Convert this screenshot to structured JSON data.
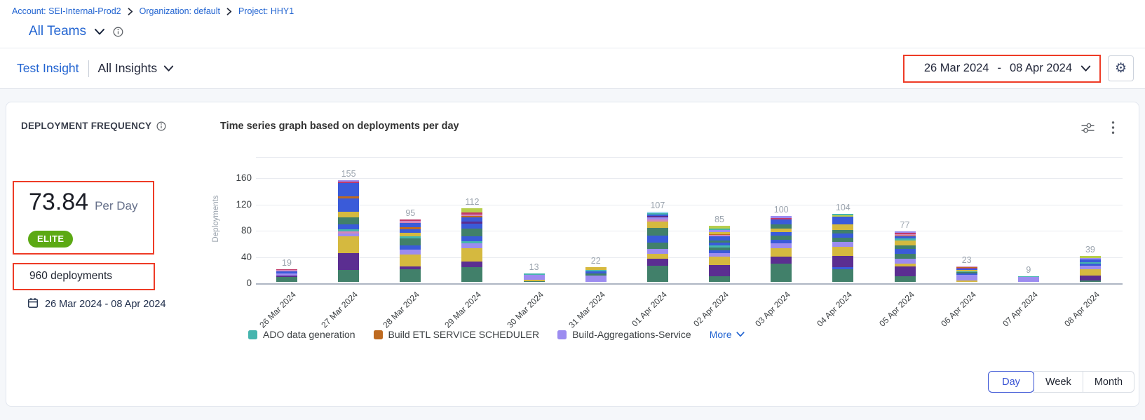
{
  "annotation_color": "#ee3b26",
  "breadcrumb": {
    "items": [
      {
        "label": "Account: SEI-Internal-Prod2"
      },
      {
        "label": "Organization: default"
      },
      {
        "label": "Project: HHY1"
      }
    ]
  },
  "team_selector": {
    "label": "All Teams"
  },
  "insight_bar": {
    "insight_name": "Test Insight",
    "scope_label": "All Insights",
    "date_from": "26 Mar 2024",
    "date_separator": "-",
    "date_to": "08 Apr 2024"
  },
  "widget": {
    "title": "DEPLOYMENT FREQUENCY",
    "metric_value": "73.84",
    "metric_unit": "Per Day",
    "badge": "ELITE",
    "badge_color": "#5ca914",
    "total_label": "960 deployments",
    "date_range": "26 Mar 2024 - 08 Apr 2024",
    "chart_title": "Time series graph based on deployments per day"
  },
  "legend": {
    "items": [
      {
        "label": "ADO data generation",
        "color": "#46b5ae"
      },
      {
        "label": "Build ETL SERVICE SCHEDULER",
        "color": "#be6a20"
      },
      {
        "label": "Build-Aggregations-Service",
        "color": "#9c8cf0"
      }
    ],
    "more_label": "More"
  },
  "granularity": {
    "options": [
      "Day",
      "Week",
      "Month"
    ],
    "selected": "Day"
  },
  "chart_data": {
    "type": "bar",
    "stacked": true,
    "title": "Time series graph based on deployments per day",
    "xlabel": "",
    "ylabel": "Deployments",
    "yticks": [
      0,
      40,
      80,
      120,
      160
    ],
    "ylim": [
      0,
      180
    ],
    "grid": true,
    "legend_position": "bottom",
    "categories": [
      "26 Mar 2024",
      "27 Mar 2024",
      "28 Mar 2024",
      "29 Mar 2024",
      "30 Mar 2024",
      "31 Mar 2024",
      "01 Apr 2024",
      "02 Apr 2024",
      "03 Apr 2024",
      "04 Apr 2024",
      "05 Apr 2024",
      "06 Apr 2024",
      "07 Apr 2024",
      "08 Apr 2024"
    ],
    "totals": [
      19,
      155,
      95,
      112,
      13,
      22,
      107,
      85,
      100,
      104,
      77,
      23,
      9,
      39
    ],
    "palette": {
      "green": "#41806a",
      "darkPurple": "#5b2e91",
      "yellow": "#d5b93f",
      "periwinkle": "#9c8cf0",
      "blue": "#3a5bd9",
      "teal": "#46b5ae",
      "orange": "#be6a20",
      "crimson": "#c13a6b",
      "pink": "#d287bc",
      "lightGreen": "#b7ce4c",
      "lightBlue": "#9fd8ef"
    },
    "stacks": [
      [
        [
          "green",
          8
        ],
        [
          "darkPurple",
          2
        ],
        [
          "periwinkle",
          3
        ],
        [
          "blue",
          3
        ],
        [
          "pink",
          2
        ],
        [
          "crimson",
          1
        ]
      ],
      [
        [
          "green",
          18
        ],
        [
          "darkPurple",
          26
        ],
        [
          "yellow",
          25
        ],
        [
          "periwinkle",
          5
        ],
        [
          "pink",
          3
        ],
        [
          "teal",
          3
        ],
        [
          "blue",
          8
        ],
        [
          "green",
          10
        ],
        [
          "yellow",
          9
        ],
        [
          "blue",
          20
        ],
        [
          "orange",
          3
        ],
        [
          "blue",
          20
        ],
        [
          "crimson",
          3
        ],
        [
          "periwinkle",
          2
        ]
      ],
      [
        [
          "green",
          19
        ],
        [
          "darkPurple",
          5
        ],
        [
          "yellow",
          18
        ],
        [
          "periwinkle",
          7
        ],
        [
          "blue",
          7
        ],
        [
          "green",
          10
        ],
        [
          "teal",
          3
        ],
        [
          "yellow",
          6
        ],
        [
          "blue",
          5
        ],
        [
          "orange",
          3
        ],
        [
          "blue",
          7
        ],
        [
          "pink",
          3
        ],
        [
          "crimson",
          2
        ]
      ],
      [
        [
          "green",
          22
        ],
        [
          "darkPurple",
          9
        ],
        [
          "yellow",
          20
        ],
        [
          "periwinkle",
          8
        ],
        [
          "teal",
          3
        ],
        [
          "blue",
          7
        ],
        [
          "green",
          12
        ],
        [
          "blue",
          8
        ],
        [
          "darkPurple",
          3
        ],
        [
          "blue",
          6
        ],
        [
          "orange",
          2
        ],
        [
          "pink",
          3
        ],
        [
          "crimson",
          3
        ],
        [
          "lightGreen",
          6
        ]
      ],
      [
        [
          "green",
          1
        ],
        [
          "yellow",
          2
        ],
        [
          "periwinkle",
          8
        ],
        [
          "teal",
          2
        ]
      ],
      [
        [
          "periwinkle",
          10
        ],
        [
          "green",
          3
        ],
        [
          "blue",
          3
        ],
        [
          "teal",
          2
        ],
        [
          "yellow",
          4
        ]
      ],
      [
        [
          "green",
          25
        ],
        [
          "darkPurple",
          10
        ],
        [
          "yellow",
          8
        ],
        [
          "periwinkle",
          7
        ],
        [
          "green",
          10
        ],
        [
          "blue",
          10
        ],
        [
          "green",
          12
        ],
        [
          "yellow",
          10
        ],
        [
          "pink",
          3
        ],
        [
          "periwinkle",
          3
        ],
        [
          "darkPurple",
          2
        ],
        [
          "blue",
          3
        ],
        [
          "teal",
          2
        ],
        [
          "lightBlue",
          2
        ]
      ],
      [
        [
          "green",
          9
        ],
        [
          "darkPurple",
          17
        ],
        [
          "yellow",
          12
        ],
        [
          "periwinkle",
          6
        ],
        [
          "blue",
          4
        ],
        [
          "green",
          4
        ],
        [
          "teal",
          3
        ],
        [
          "blue",
          5
        ],
        [
          "green",
          3
        ],
        [
          "blue",
          6
        ],
        [
          "pink",
          2
        ],
        [
          "orange",
          2
        ],
        [
          "yellow",
          3
        ],
        [
          "periwinkle",
          3
        ],
        [
          "teal",
          2
        ],
        [
          "lightGreen",
          4
        ]
      ],
      [
        [
          "green",
          28
        ],
        [
          "darkPurple",
          10
        ],
        [
          "yellow",
          13
        ],
        [
          "periwinkle",
          8
        ],
        [
          "blue",
          5
        ],
        [
          "green",
          6
        ],
        [
          "blue",
          6
        ],
        [
          "yellow",
          5
        ],
        [
          "green",
          6
        ],
        [
          "blue",
          8
        ],
        [
          "crimson",
          2
        ],
        [
          "periwinkle",
          3
        ]
      ],
      [
        [
          "green",
          19
        ],
        [
          "blue",
          3
        ],
        [
          "darkPurple",
          17
        ],
        [
          "yellow",
          14
        ],
        [
          "periwinkle",
          8
        ],
        [
          "green",
          6
        ],
        [
          "blue",
          7
        ],
        [
          "green",
          5
        ],
        [
          "yellow",
          8
        ],
        [
          "blue",
          12
        ],
        [
          "lightGreen",
          2
        ],
        [
          "teal",
          3
        ]
      ],
      [
        [
          "green",
          9
        ],
        [
          "darkPurple",
          15
        ],
        [
          "yellow",
          4
        ],
        [
          "periwinkle",
          7
        ],
        [
          "green",
          8
        ],
        [
          "blue",
          7
        ],
        [
          "green",
          6
        ],
        [
          "yellow",
          7
        ],
        [
          "teal",
          3
        ],
        [
          "blue",
          3
        ],
        [
          "orange",
          2
        ],
        [
          "pink",
          2
        ],
        [
          "crimson",
          2
        ],
        [
          "periwinkle",
          2
        ]
      ],
      [
        [
          "yellow",
          2
        ],
        [
          "periwinkle",
          9
        ],
        [
          "blue",
          2
        ],
        [
          "green",
          2
        ],
        [
          "teal",
          1
        ],
        [
          "yellow",
          2
        ],
        [
          "blue",
          2
        ],
        [
          "crimson",
          1
        ],
        [
          "orange",
          1
        ],
        [
          "pink",
          1
        ]
      ],
      [
        [
          "periwinkle",
          8
        ],
        [
          "teal",
          1
        ]
      ],
      [
        [
          "green",
          2
        ],
        [
          "darkPurple",
          8
        ],
        [
          "yellow",
          9
        ],
        [
          "periwinkle",
          6
        ],
        [
          "blue",
          3
        ],
        [
          "teal",
          2
        ],
        [
          "blue",
          4
        ],
        [
          "periwinkle",
          2
        ],
        [
          "lightGreen",
          3
        ]
      ]
    ]
  }
}
